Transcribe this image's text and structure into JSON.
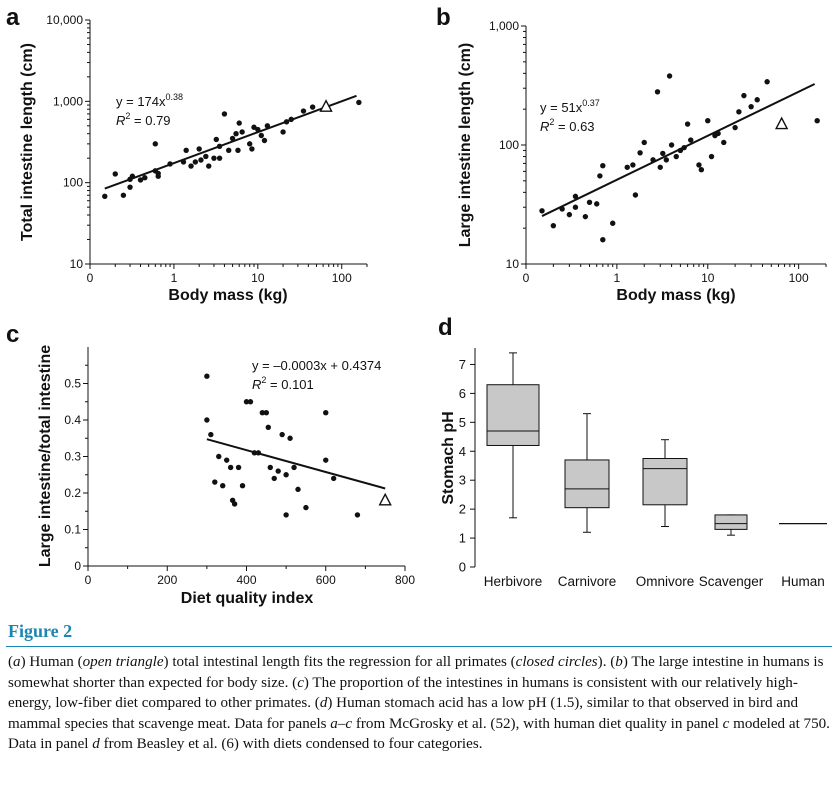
{
  "chart_data": [
    {
      "panel": "a",
      "type": "scatter",
      "x_scale": "log",
      "y_scale": "log",
      "xlabel": "Body mass (kg)",
      "ylabel": "Total intestine length (cm)",
      "xlim": [
        0.1,
        200
      ],
      "ylim": [
        10,
        10000
      ],
      "x_ticks": [
        0.1,
        1,
        10,
        100
      ],
      "x_tick_labels": [
        "0",
        "1",
        "10",
        "100"
      ],
      "y_ticks": [
        10,
        100,
        1000,
        10000
      ],
      "y_tick_labels": [
        "10",
        "100",
        "1,000",
        "10,000"
      ],
      "equation": "y = 174x",
      "exponent": "0.38",
      "r2_label": "R",
      "r2_text": " = 0.79",
      "fit": {
        "a": 174,
        "b": 0.38,
        "x_range": [
          0.15,
          150
        ]
      },
      "points": [
        [
          0.15,
          68
        ],
        [
          0.2,
          128
        ],
        [
          0.25,
          70
        ],
        [
          0.3,
          88
        ],
        [
          0.3,
          110
        ],
        [
          0.32,
          120
        ],
        [
          0.4,
          108
        ],
        [
          0.45,
          115
        ],
        [
          0.6,
          300
        ],
        [
          0.6,
          140
        ],
        [
          0.65,
          130
        ],
        [
          0.65,
          120
        ],
        [
          0.9,
          170
        ],
        [
          1.3,
          180
        ],
        [
          1.4,
          250
        ],
        [
          1.6,
          160
        ],
        [
          1.8,
          180
        ],
        [
          2.0,
          260
        ],
        [
          2.1,
          190
        ],
        [
          2.4,
          210
        ],
        [
          2.6,
          160
        ],
        [
          3.0,
          200
        ],
        [
          3.2,
          340
        ],
        [
          3.5,
          280
        ],
        [
          3.5,
          200
        ],
        [
          4.0,
          700
        ],
        [
          4.5,
          250
        ],
        [
          5.0,
          350
        ],
        [
          5.5,
          400
        ],
        [
          5.8,
          250
        ],
        [
          6.0,
          540
        ],
        [
          6.5,
          420
        ],
        [
          8.0,
          300
        ],
        [
          8.5,
          260
        ],
        [
          9.0,
          480
        ],
        [
          10,
          450
        ],
        [
          11,
          380
        ],
        [
          12,
          330
        ],
        [
          13,
          500
        ],
        [
          20,
          420
        ],
        [
          22,
          560
        ],
        [
          25,
          600
        ],
        [
          35,
          760
        ],
        [
          45,
          850
        ],
        [
          160,
          970
        ]
      ],
      "human": [
        65,
        860
      ]
    },
    {
      "panel": "b",
      "type": "scatter",
      "x_scale": "log",
      "y_scale": "log",
      "xlabel": "Body mass (kg)",
      "ylabel": "Large intestine length (cm)",
      "xlim": [
        0.1,
        200
      ],
      "ylim": [
        10,
        1000
      ],
      "x_ticks": [
        0.1,
        1,
        10,
        100
      ],
      "x_tick_labels": [
        "0",
        "1",
        "10",
        "100"
      ],
      "y_ticks": [
        10,
        100,
        1000
      ],
      "y_tick_labels": [
        "10",
        "100",
        "1,000"
      ],
      "equation": "y = 51x",
      "exponent": "0.37",
      "r2_label": "R",
      "r2_text": " = 0.63",
      "fit": {
        "a": 51,
        "b": 0.37,
        "x_range": [
          0.15,
          150
        ]
      },
      "points": [
        [
          0.15,
          28
        ],
        [
          0.2,
          21
        ],
        [
          0.25,
          29
        ],
        [
          0.3,
          26
        ],
        [
          0.35,
          30
        ],
        [
          0.35,
          37
        ],
        [
          0.45,
          25
        ],
        [
          0.5,
          33
        ],
        [
          0.6,
          32
        ],
        [
          0.65,
          55
        ],
        [
          0.7,
          67
        ],
        [
          0.7,
          16
        ],
        [
          0.9,
          22
        ],
        [
          1.3,
          65
        ],
        [
          1.5,
          68
        ],
        [
          1.6,
          38
        ],
        [
          1.8,
          86
        ],
        [
          2.0,
          105
        ],
        [
          2.5,
          75
        ],
        [
          2.8,
          280
        ],
        [
          3.0,
          65
        ],
        [
          3.2,
          85
        ],
        [
          3.5,
          75
        ],
        [
          3.8,
          380
        ],
        [
          4.0,
          100
        ],
        [
          4.5,
          80
        ],
        [
          5.0,
          90
        ],
        [
          5.5,
          95
        ],
        [
          6.0,
          150
        ],
        [
          6.5,
          110
        ],
        [
          8.0,
          68
        ],
        [
          8.5,
          62
        ],
        [
          10,
          160
        ],
        [
          11,
          80
        ],
        [
          12,
          120
        ],
        [
          13,
          125
        ],
        [
          15,
          105
        ],
        [
          20,
          140
        ],
        [
          22,
          190
        ],
        [
          25,
          260
        ],
        [
          30,
          210
        ],
        [
          35,
          240
        ],
        [
          45,
          340
        ],
        [
          160,
          160
        ]
      ],
      "human": [
        65,
        150
      ]
    },
    {
      "panel": "c",
      "type": "scatter",
      "xlabel": "Diet quality index",
      "ylabel": "Large intestine/total intestine",
      "xlim": [
        0,
        800
      ],
      "ylim": [
        0,
        0.6
      ],
      "x_ticks": [
        0,
        200,
        400,
        600,
        800
      ],
      "x_tick_labels": [
        "0",
        "200",
        "400",
        "600",
        "800"
      ],
      "y_ticks": [
        0,
        0.1,
        0.2,
        0.3,
        0.4,
        0.5
      ],
      "y_tick_labels": [
        "0",
        "0.1",
        "0.2",
        "0.3",
        "0.4",
        "0.5"
      ],
      "equation": "y = –0.0003x + 0.4374",
      "r2_label": "R",
      "r2_text": " = 0.101",
      "fit": {
        "m": -0.0003,
        "c": 0.4374,
        "x_range": [
          300,
          750
        ]
      },
      "points": [
        [
          300,
          0.52
        ],
        [
          300,
          0.4
        ],
        [
          310,
          0.36
        ],
        [
          320,
          0.23
        ],
        [
          330,
          0.3
        ],
        [
          340,
          0.22
        ],
        [
          350,
          0.29
        ],
        [
          360,
          0.27
        ],
        [
          365,
          0.18
        ],
        [
          370,
          0.17
        ],
        [
          380,
          0.27
        ],
        [
          390,
          0.22
        ],
        [
          400,
          0.45
        ],
        [
          410,
          0.45
        ],
        [
          420,
          0.31
        ],
        [
          430,
          0.31
        ],
        [
          440,
          0.42
        ],
        [
          450,
          0.42
        ],
        [
          455,
          0.38
        ],
        [
          460,
          0.27
        ],
        [
          470,
          0.24
        ],
        [
          480,
          0.26
        ],
        [
          490,
          0.36
        ],
        [
          500,
          0.25
        ],
        [
          500,
          0.14
        ],
        [
          510,
          0.35
        ],
        [
          520,
          0.27
        ],
        [
          530,
          0.21
        ],
        [
          550,
          0.16
        ],
        [
          600,
          0.42
        ],
        [
          600,
          0.29
        ],
        [
          620,
          0.24
        ],
        [
          680,
          0.14
        ]
      ],
      "human": [
        750,
        0.18
      ]
    },
    {
      "panel": "d",
      "type": "box",
      "ylabel": "Stomach pH",
      "ylim": [
        0,
        7.5
      ],
      "y_ticks": [
        0,
        1,
        2,
        3,
        4,
        5,
        6,
        7
      ],
      "y_tick_labels": [
        "0",
        "1",
        "2",
        "3",
        "4",
        "5",
        "6",
        "7"
      ],
      "categories": [
        "Herbivore",
        "Carnivore",
        "Omnivore",
        "Scavenger",
        "Human"
      ],
      "boxes": [
        {
          "min": 1.7,
          "q1": 4.2,
          "median": 4.7,
          "q3": 6.3,
          "max": 7.4
        },
        {
          "min": 1.2,
          "q1": 2.05,
          "median": 2.7,
          "q3": 3.7,
          "max": 5.3
        },
        {
          "min": 1.4,
          "q1": 2.15,
          "median": 3.4,
          "q3": 3.75,
          "max": 4.4
        },
        {
          "min": 1.1,
          "q1": 1.3,
          "median": 1.5,
          "q3": 1.8,
          "max": 1.8
        },
        {
          "value": 1.5
        }
      ]
    }
  ],
  "panel_letters": [
    "a",
    "b",
    "c",
    "d"
  ],
  "figure_label": "Figure 2",
  "caption": [
    {
      "t": "("
    },
    {
      "t": "a",
      "i": true
    },
    {
      "t": ") Human ("
    },
    {
      "t": "open triangle",
      "i": true
    },
    {
      "t": ") total intestinal length fits the regression for all primates ("
    },
    {
      "t": "closed circles",
      "i": true
    },
    {
      "t": "). ("
    },
    {
      "t": "b",
      "i": true
    },
    {
      "t": ") The large intestine in humans is somewhat shorter than expected for body size. ("
    },
    {
      "t": "c",
      "i": true
    },
    {
      "t": ") The proportion of the intestines in humans is consistent with our relatively high-energy, low-fiber diet compared to other primates. ("
    },
    {
      "t": "d",
      "i": true
    },
    {
      "t": ") Human stomach acid has a low pH (1.5), similar to that observed in bird and mammal species that scavenge meat. Data for panels "
    },
    {
      "t": "a–c",
      "i": true
    },
    {
      "t": " from McGrosky et al. (52), with human diet quality in panel "
    },
    {
      "t": "c",
      "i": true
    },
    {
      "t": " modeled at 750. Data in panel "
    },
    {
      "t": "d",
      "i": true
    },
    {
      "t": " from Beasley et al. (6) with diets condensed to four categories."
    }
  ],
  "colors": {
    "ink": "#111111",
    "box_fill": "#c8c8c8",
    "accent": "#1a86b4"
  }
}
